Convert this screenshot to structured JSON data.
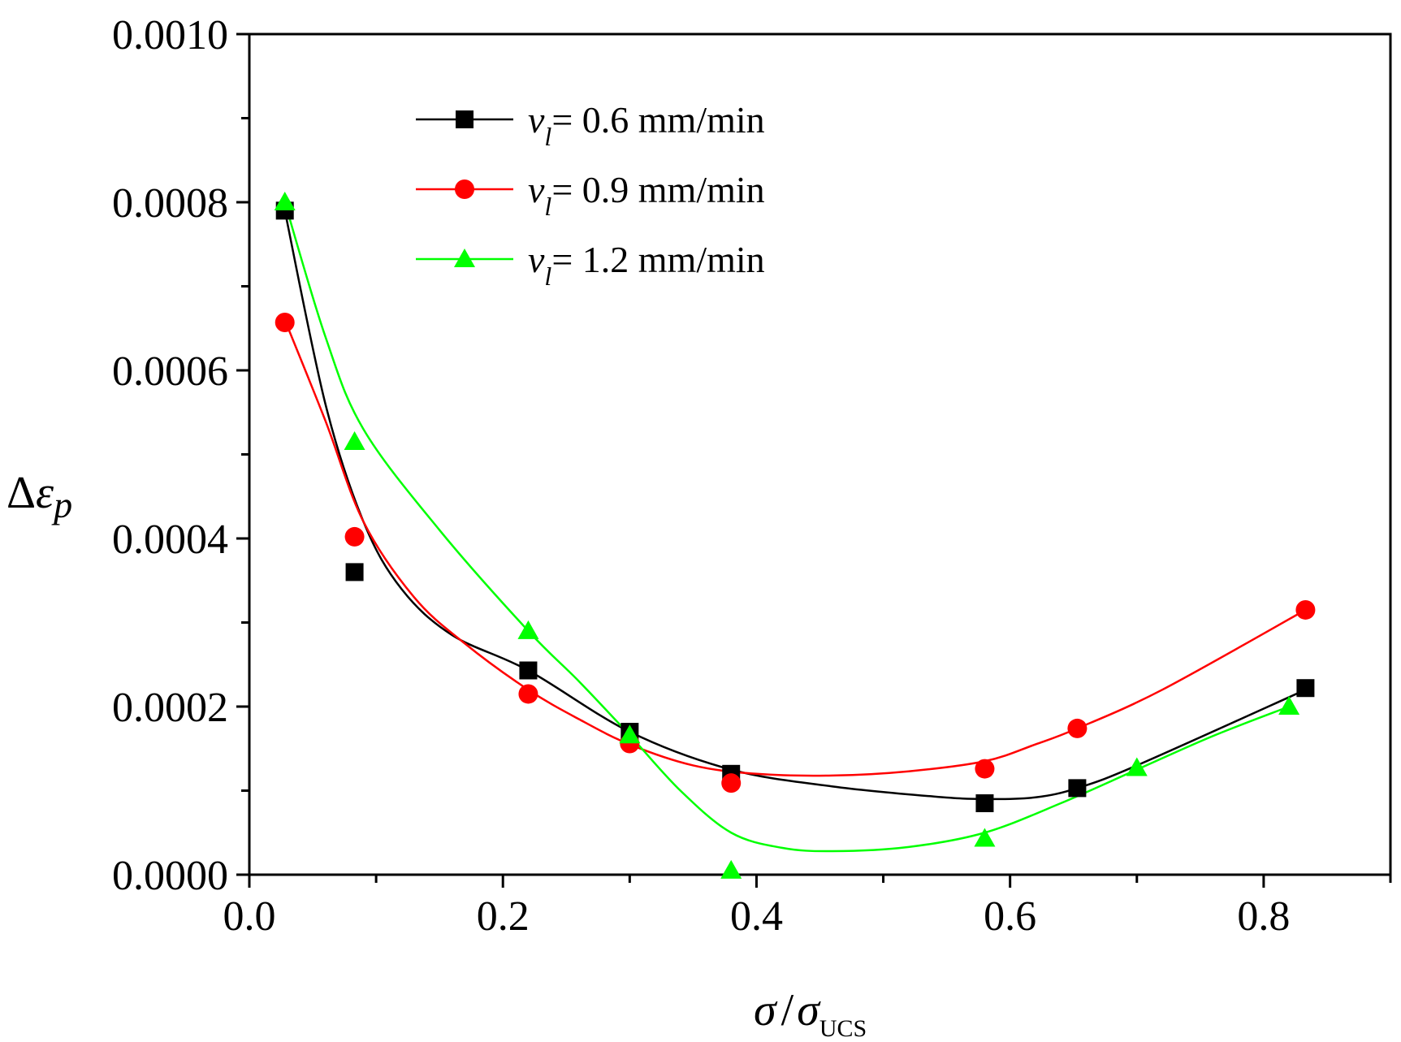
{
  "chart_data": {
    "type": "scatter",
    "title": "",
    "xlabel": {
      "symbol": "σ",
      "slash": "/",
      "main": "σ",
      "sub": "UCS"
    },
    "ylabel": {
      "prefix": "Δ",
      "symbol": "ε",
      "sub": "p"
    },
    "xlim": [
      0.0,
      0.9
    ],
    "ylim": [
      0.0,
      0.001
    ],
    "xticks": [
      {
        "value": 0.0,
        "label": "0.0"
      },
      {
        "value": 0.2,
        "label": "0.2"
      },
      {
        "value": 0.4,
        "label": "0.4"
      },
      {
        "value": 0.6,
        "label": "0.6"
      },
      {
        "value": 0.8,
        "label": "0.8"
      }
    ],
    "yticks": [
      {
        "value": 0.0,
        "label": "0.0000"
      },
      {
        "value": 0.0002,
        "label": "0.0002"
      },
      {
        "value": 0.0004,
        "label": "0.0004"
      },
      {
        "value": 0.0006,
        "label": "0.0006"
      },
      {
        "value": 0.0008,
        "label": "0.0008"
      },
      {
        "value": 0.001,
        "label": "0.0010"
      }
    ],
    "x_minor_step": 0.1,
    "y_minor_step": 0.0001,
    "grid": false,
    "legend_position": "top-left",
    "series": [
      {
        "name": "v_l = 0.6 mm/min",
        "legend": {
          "var": "v",
          "sub": "l",
          "rest": "= 0.6 mm/min"
        },
        "color": "#000000",
        "marker": "square",
        "points": [
          [
            0.028,
            0.00079
          ],
          [
            0.083,
            0.00036
          ],
          [
            0.22,
            0.000243
          ],
          [
            0.3,
            0.00017
          ],
          [
            0.38,
            0.00012
          ],
          [
            0.58,
            8.5e-05
          ],
          [
            0.653,
            0.000103
          ],
          [
            0.833,
            0.000222
          ]
        ],
        "fit": [
          [
            0.028,
            0.00079
          ],
          [
            0.06,
            0.00056
          ],
          [
            0.09,
            0.00042
          ],
          [
            0.12,
            0.00034
          ],
          [
            0.16,
            0.000285
          ],
          [
            0.22,
            0.000243
          ],
          [
            0.3,
            0.00017
          ],
          [
            0.38,
            0.000125
          ],
          [
            0.46,
            0.000105
          ],
          [
            0.54,
            9.3e-05
          ],
          [
            0.58,
            9e-05
          ],
          [
            0.62,
            9.2e-05
          ],
          [
            0.653,
            0.000103
          ],
          [
            0.7,
            0.00013
          ],
          [
            0.833,
            0.00022
          ]
        ]
      },
      {
        "name": "v_l = 0.9 mm/min",
        "legend": {
          "var": "v",
          "sub": "l",
          "rest": "= 0.9 mm/min"
        },
        "color": "#ff0000",
        "marker": "circle",
        "points": [
          [
            0.028,
            0.000657
          ],
          [
            0.083,
            0.000402
          ],
          [
            0.22,
            0.000215
          ],
          [
            0.3,
            0.000156
          ],
          [
            0.38,
            0.000109
          ],
          [
            0.58,
            0.000126
          ],
          [
            0.653,
            0.000174
          ],
          [
            0.833,
            0.000315
          ]
        ],
        "fit": [
          [
            0.028,
            0.00066
          ],
          [
            0.06,
            0.00054
          ],
          [
            0.09,
            0.00042
          ],
          [
            0.13,
            0.00033
          ],
          [
            0.17,
            0.000275
          ],
          [
            0.22,
            0.00022
          ],
          [
            0.26,
            0.000185
          ],
          [
            0.3,
            0.000155
          ],
          [
            0.35,
            0.00013
          ],
          [
            0.4,
            0.00012
          ],
          [
            0.46,
            0.000118
          ],
          [
            0.52,
            0.000123
          ],
          [
            0.58,
            0.000135
          ],
          [
            0.62,
            0.000155
          ],
          [
            0.653,
            0.000174
          ],
          [
            0.72,
            0.00022
          ],
          [
            0.833,
            0.000315
          ]
        ]
      },
      {
        "name": "v_l = 1.2 mm/min",
        "legend": {
          "var": "v",
          "sub": "l",
          "rest": "= 1.2 mm/min"
        },
        "color": "#00ff00",
        "marker": "triangle",
        "points": [
          [
            0.028,
            0.0008
          ],
          [
            0.083,
            0.000515
          ],
          [
            0.22,
            0.00029
          ],
          [
            0.3,
            0.000166
          ],
          [
            0.38,
            5e-06
          ],
          [
            0.58,
            4.3e-05
          ],
          [
            0.7,
            0.000127
          ],
          [
            0.82,
            0.0002
          ]
        ],
        "fit": [
          [
            0.028,
            0.0008
          ],
          [
            0.06,
            0.00064
          ],
          [
            0.09,
            0.00053
          ],
          [
            0.15,
            0.00041
          ],
          [
            0.22,
            0.00029
          ],
          [
            0.26,
            0.00023
          ],
          [
            0.3,
            0.000166
          ],
          [
            0.34,
            0.0001
          ],
          [
            0.38,
            5e-05
          ],
          [
            0.42,
            3.2e-05
          ],
          [
            0.46,
            2.8e-05
          ],
          [
            0.52,
            3.3e-05
          ],
          [
            0.58,
            5e-05
          ],
          [
            0.64,
            8.5e-05
          ],
          [
            0.7,
            0.000125
          ],
          [
            0.76,
            0.000165
          ],
          [
            0.82,
            0.0002
          ]
        ]
      }
    ]
  }
}
